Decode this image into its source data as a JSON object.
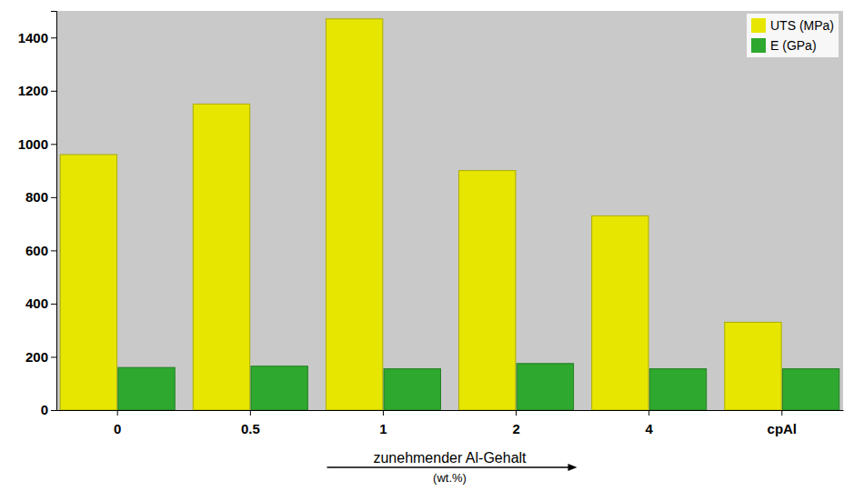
{
  "chart_data": {
    "type": "bar",
    "categories": [
      "0",
      "0.5",
      "1",
      "2",
      "4",
      "cpAl"
    ],
    "series": [
      {
        "name": "UTS (MPa)",
        "color": "#e6e600",
        "values": [
          960,
          1150,
          1470,
          900,
          730,
          330
        ]
      },
      {
        "name": "E (GPa)",
        "color": "#2ea82e",
        "values": [
          160,
          165,
          155,
          175,
          155,
          155
        ]
      }
    ],
    "x_label": "zunehmender Al-Gehalt",
    "annotations": [
      "(wt.%)"
    ],
    "ylim": [
      0,
      1500
    ],
    "yticks": [
      0,
      200,
      400,
      600,
      800,
      1000,
      1200,
      1400
    ],
    "grid": false,
    "legend": "upper right"
  }
}
